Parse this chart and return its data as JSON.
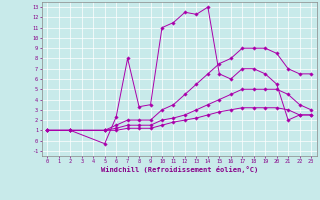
{
  "xlabel": "Windchill (Refroidissement éolien,°C)",
  "xlim": [
    -0.5,
    23.5
  ],
  "ylim": [
    -1.5,
    13.5
  ],
  "xticks": [
    0,
    1,
    2,
    3,
    4,
    5,
    6,
    7,
    8,
    9,
    10,
    11,
    12,
    13,
    14,
    15,
    16,
    17,
    18,
    19,
    20,
    21,
    22,
    23
  ],
  "yticks": [
    -1,
    0,
    1,
    2,
    3,
    4,
    5,
    6,
    7,
    8,
    9,
    10,
    11,
    12,
    13
  ],
  "bg_color": "#c8eaea",
  "line_color": "#aa00aa",
  "grid_color": "#ffffff",
  "lines": [
    {
      "x": [
        0,
        2,
        5,
        6,
        7,
        8,
        9,
        10,
        11,
        12,
        13,
        14,
        15,
        16,
        17,
        18,
        19,
        20,
        21,
        22,
        23
      ],
      "y": [
        1,
        1,
        -0.3,
        2.3,
        8.0,
        3.3,
        3.5,
        11.0,
        11.5,
        12.5,
        12.3,
        13.0,
        6.5,
        6.0,
        7.0,
        7.0,
        6.5,
        5.5,
        2.0,
        2.5,
        2.5
      ]
    },
    {
      "x": [
        0,
        2,
        5,
        6,
        7,
        8,
        9,
        10,
        11,
        12,
        13,
        14,
        15,
        16,
        17,
        18,
        19,
        20,
        21,
        22,
        23
      ],
      "y": [
        1,
        1,
        1.0,
        1.5,
        2.0,
        2.0,
        2.0,
        3.0,
        3.5,
        4.5,
        5.5,
        6.5,
        7.5,
        8.0,
        9.0,
        9.0,
        9.0,
        8.5,
        7.0,
        6.5,
        6.5
      ]
    },
    {
      "x": [
        0,
        2,
        5,
        6,
        7,
        8,
        9,
        10,
        11,
        12,
        13,
        14,
        15,
        16,
        17,
        18,
        19,
        20,
        21,
        22,
        23
      ],
      "y": [
        1,
        1,
        1.0,
        1.2,
        1.5,
        1.5,
        1.5,
        2.0,
        2.2,
        2.5,
        3.0,
        3.5,
        4.0,
        4.5,
        5.0,
        5.0,
        5.0,
        5.0,
        4.5,
        3.5,
        3.0
      ]
    },
    {
      "x": [
        0,
        2,
        5,
        6,
        7,
        8,
        9,
        10,
        11,
        12,
        13,
        14,
        15,
        16,
        17,
        18,
        19,
        20,
        21,
        22,
        23
      ],
      "y": [
        1,
        1,
        1.0,
        1.0,
        1.2,
        1.2,
        1.2,
        1.5,
        1.8,
        2.0,
        2.2,
        2.5,
        2.8,
        3.0,
        3.2,
        3.2,
        3.2,
        3.2,
        3.0,
        2.5,
        2.5
      ]
    }
  ]
}
